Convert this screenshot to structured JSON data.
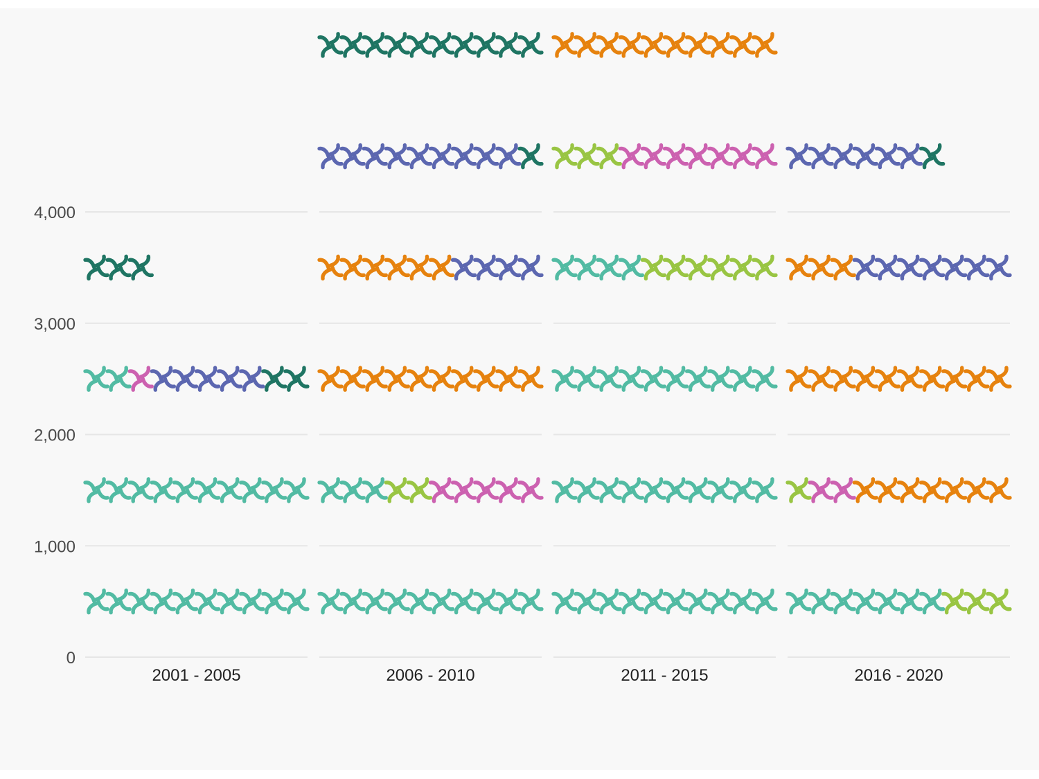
{
  "chart_data": {
    "type": "waffle",
    "title": "",
    "xlabel": "",
    "ylabel": "",
    "unit_value": 100,
    "units_per_row": 10,
    "ylim": [
      0,
      4000
    ],
    "yticks": [
      0,
      1000,
      2000,
      3000,
      4000
    ],
    "ytick_labels": [
      "0",
      "1,000",
      "2,000",
      "3,000",
      "4,000"
    ],
    "grid": true,
    "legend": "none",
    "categories": [
      "2001 - 2005",
      "2006 - 2010",
      "2011 - 2015",
      "2016 - 2020"
    ],
    "series": [
      {
        "color": "#52bba3",
        "values": [
          2200,
          1300,
          3400,
          700
        ]
      },
      {
        "color": "#99c543",
        "values": [
          0,
          200,
          900,
          400
        ]
      },
      {
        "color": "#cc61b0",
        "values": [
          100,
          500,
          700,
          200
        ]
      },
      {
        "color": "#e6820e",
        "values": [
          0,
          1600,
          1900,
          2000
        ]
      },
      {
        "color": "#5c67b0",
        "values": [
          500,
          1300,
          2600,
          1300
        ]
      },
      {
        "color": "#1f7563",
        "values": [
          500,
          1300,
          1000,
          100
        ]
      }
    ]
  }
}
